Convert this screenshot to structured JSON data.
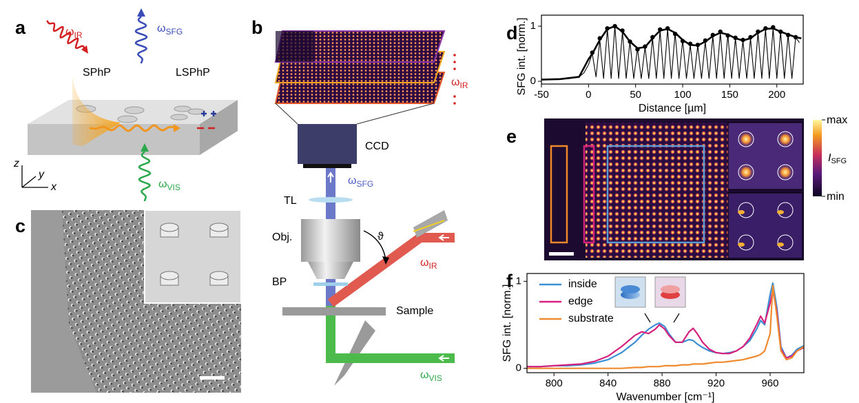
{
  "panel_labels": [
    "a",
    "b",
    "c",
    "d",
    "e",
    "f"
  ],
  "panel_a": {
    "omega_ir": {
      "base": "ω",
      "sub": "IR"
    },
    "omega_sfg": {
      "base": "ω",
      "sub": "SFG"
    },
    "sphp": "SPhP",
    "lsphp": "LSPhP",
    "omega_vis": {
      "base": "ω",
      "sub": "VIS"
    },
    "axes": [
      "z",
      "y",
      "x"
    ]
  },
  "panel_b": {
    "stack_label": {
      "base": "ω",
      "sub": "IR"
    },
    "ccd": "CCD",
    "omega_sfg": {
      "base": "ω",
      "sub": "SFG"
    },
    "tl": "TL",
    "obj": "Obj.",
    "theta": "ϑ",
    "omega_ir": {
      "base": "ω",
      "sub": "IR"
    },
    "bp": "BP",
    "sample": "Sample",
    "omega_vis": {
      "base": "ω",
      "sub": "VIS"
    }
  },
  "panel_e": {
    "colorbar_max": "max",
    "colorbar_label": {
      "base": "I",
      "sub": "SFG"
    },
    "colorbar_min": "min"
  },
  "chart_data": [
    {
      "type": "line",
      "ylabel": "SFG int. [norm.]",
      "xlabel": "Distance [µm]",
      "xlim": [
        -50,
        228
      ],
      "ylim": [
        -0.05,
        1.2
      ],
      "xticks": [
        -50,
        0,
        50,
        100,
        150,
        200
      ],
      "yticks": [
        0,
        1
      ],
      "series": [
        {
          "mode": "lines",
          "color": "#000000",
          "x": [
            -50,
            -40,
            -30,
            -20,
            -10,
            -5,
            0,
            4,
            8,
            12,
            16,
            20,
            24,
            28,
            32,
            36,
            40,
            44,
            48,
            52,
            56,
            60,
            64,
            68,
            72,
            76,
            80,
            84,
            88,
            92,
            96,
            100,
            104,
            108,
            112,
            116,
            120,
            124,
            128,
            132,
            136,
            140,
            144,
            148,
            152,
            156,
            160,
            164,
            168,
            172,
            176,
            180,
            184,
            188,
            192,
            196,
            200,
            204,
            208,
            212,
            216,
            220,
            224
          ],
          "values": [
            0.03,
            0.03,
            0.04,
            0.05,
            0.08,
            0.15,
            0.3,
            0.5,
            0.08,
            0.75,
            0.05,
            0.95,
            0.05,
            1.0,
            0.05,
            0.9,
            0.05,
            0.72,
            0.05,
            0.6,
            0.05,
            0.62,
            0.05,
            0.78,
            0.05,
            0.92,
            0.05,
            0.95,
            0.05,
            0.88,
            0.05,
            0.75,
            0.05,
            0.66,
            0.05,
            0.65,
            0.05,
            0.72,
            0.05,
            0.82,
            0.05,
            0.88,
            0.05,
            0.85,
            0.05,
            0.78,
            0.05,
            0.74,
            0.05,
            0.78,
            0.05,
            0.88,
            0.05,
            0.95,
            0.05,
            0.96,
            0.05,
            0.9,
            0.05,
            0.85,
            0.05,
            0.8,
            0.7
          ]
        },
        {
          "mode": "lines",
          "color": "#000000",
          "x": [
            -50,
            -30,
            -10,
            0,
            4,
            12,
            20,
            28,
            36,
            44,
            52,
            60,
            68,
            76,
            84,
            92,
            100,
            108,
            116,
            124,
            132,
            140,
            148,
            156,
            164,
            172,
            180,
            188,
            196,
            204,
            212,
            220,
            226
          ],
          "values": [
            0.03,
            0.04,
            0.08,
            0.4,
            0.5,
            0.75,
            0.95,
            1.0,
            0.9,
            0.72,
            0.6,
            0.62,
            0.78,
            0.92,
            0.95,
            0.88,
            0.75,
            0.66,
            0.65,
            0.72,
            0.82,
            0.88,
            0.85,
            0.78,
            0.74,
            0.78,
            0.88,
            0.95,
            0.96,
            0.9,
            0.85,
            0.8,
            0.78
          ]
        },
        {
          "mode": "markers",
          "color": "#000000",
          "x": [
            4,
            12,
            20,
            28,
            36,
            44,
            52,
            60,
            68,
            76,
            84,
            92,
            100,
            108,
            116,
            124,
            132,
            140,
            148,
            156,
            164,
            172,
            180,
            188,
            196,
            204,
            212,
            220
          ],
          "values": [
            0.52,
            0.78,
            0.96,
            1.0,
            0.92,
            0.72,
            0.58,
            0.63,
            0.8,
            0.94,
            0.96,
            0.86,
            0.73,
            0.68,
            0.66,
            0.74,
            0.84,
            0.9,
            0.83,
            0.79,
            0.75,
            0.8,
            0.9,
            0.96,
            0.98,
            0.9,
            0.84,
            0.8
          ]
        }
      ]
    },
    {
      "type": "line",
      "ylabel": "SFG int. [norm.]",
      "xlabel": "Wavenumber [cm⁻¹]",
      "xlim": [
        780,
        985
      ],
      "ylim": [
        -0.05,
        1.09
      ],
      "xticks": [
        800,
        840,
        880,
        920,
        960
      ],
      "yticks": [
        0,
        1
      ],
      "legend": "upper left",
      "x": [
        780,
        790,
        800,
        810,
        820,
        830,
        840,
        850,
        860,
        865,
        870,
        875,
        878,
        882,
        885,
        890,
        895,
        900,
        903,
        906,
        910,
        915,
        920,
        925,
        930,
        935,
        940,
        945,
        950,
        953,
        956,
        960,
        962,
        965,
        968,
        972,
        976,
        980,
        985
      ],
      "series": [
        {
          "name": "inside",
          "color": "#3b8fd4",
          "values": [
            0.02,
            0.02,
            0.03,
            0.03,
            0.04,
            0.06,
            0.1,
            0.18,
            0.3,
            0.38,
            0.45,
            0.5,
            0.52,
            0.48,
            0.4,
            0.3,
            0.3,
            0.33,
            0.32,
            0.28,
            0.24,
            0.2,
            0.18,
            0.17,
            0.18,
            0.2,
            0.25,
            0.32,
            0.45,
            0.55,
            0.5,
            0.85,
            0.98,
            0.7,
            0.25,
            0.12,
            0.15,
            0.22,
            0.26
          ]
        },
        {
          "name": "edge",
          "color": "#d8207f",
          "values": [
            0.02,
            0.02,
            0.03,
            0.04,
            0.05,
            0.08,
            0.14,
            0.25,
            0.38,
            0.42,
            0.4,
            0.45,
            0.5,
            0.45,
            0.38,
            0.3,
            0.3,
            0.42,
            0.46,
            0.4,
            0.3,
            0.22,
            0.18,
            0.17,
            0.17,
            0.2,
            0.25,
            0.35,
            0.5,
            0.6,
            0.52,
            0.75,
            0.9,
            0.65,
            0.22,
            0.12,
            0.14,
            0.2,
            0.24
          ]
        },
        {
          "name": "substrate",
          "color": "#f08a2e",
          "values": [
            0,
            0,
            0,
            0,
            0,
            0,
            0,
            0,
            0.01,
            0.01,
            0.02,
            0.02,
            0.02,
            0.03,
            0.03,
            0.03,
            0.04,
            0.04,
            0.05,
            0.05,
            0.05,
            0.06,
            0.07,
            0.07,
            0.08,
            0.09,
            0.1,
            0.12,
            0.14,
            0.16,
            0.2,
            0.4,
            0.95,
            0.6,
            0.2,
            0.1,
            0.12,
            0.2,
            0.25
          ]
        }
      ]
    }
  ]
}
